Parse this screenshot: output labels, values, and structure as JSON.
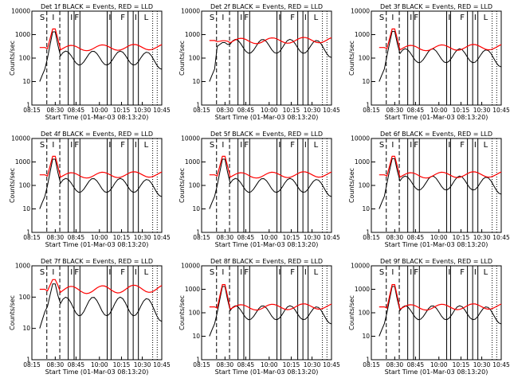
{
  "figure": {
    "xlabel": "Start Time (01-Mar-03 08:13:20)",
    "ylabel": "Counts/sec",
    "x_tick_labels": [
      "08:15",
      "08:30",
      "08:45",
      "10:00",
      "10:15",
      "10:30",
      "10:45"
    ],
    "y_tick_labels": [
      "1",
      "10",
      "100",
      "1000",
      "10000"
    ],
    "interval_labels": [
      "S",
      "I",
      "I",
      "F",
      "I",
      "F",
      "I",
      "L"
    ],
    "colors": {
      "events": "#000000",
      "lld": "#ff0000"
    }
  },
  "chart_data": [
    {
      "type": "line",
      "title": "Det 1f BLACK = Events, RED = LLD",
      "xlabel": "Start Time (01-Mar-03 08:13:20)",
      "ylabel": "Counts/sec",
      "ylim": [
        1,
        10000
      ],
      "log_y": true,
      "series": [
        {
          "name": "Events",
          "color": "#000000"
        },
        {
          "name": "LLD",
          "color": "#ff0000"
        }
      ]
    },
    {
      "type": "line",
      "title": "Det 2f BLACK = Events, RED = LLD",
      "xlabel": "Start Time (01-Mar-03 08:13:20)",
      "ylabel": "Counts/sec",
      "ylim": [
        1,
        10000
      ],
      "log_y": true,
      "series": [
        {
          "name": "Events",
          "color": "#000000"
        },
        {
          "name": "LLD",
          "color": "#ff0000"
        }
      ]
    },
    {
      "type": "line",
      "title": "Det 3f BLACK = Events, RED = LLD",
      "xlabel": "Start Time (01-Mar-03 08:13:20)",
      "ylabel": "Counts/sec",
      "ylim": [
        1,
        10000
      ],
      "log_y": true,
      "series": [
        {
          "name": "Events",
          "color": "#000000"
        },
        {
          "name": "LLD",
          "color": "#ff0000"
        }
      ]
    },
    {
      "type": "line",
      "title": "Det 4f BLACK = Events, RED = LLD",
      "xlabel": "Start Time (01-Mar-03 08:13:20)",
      "ylabel": "Counts/sec",
      "ylim": [
        1,
        10000
      ],
      "log_y": true,
      "series": [
        {
          "name": "Events",
          "color": "#000000"
        },
        {
          "name": "LLD",
          "color": "#ff0000"
        }
      ]
    },
    {
      "type": "line",
      "title": "Det 5f BLACK = Events, RED = LLD",
      "xlabel": "Start Time (01-Mar-03 08:13:20)",
      "ylabel": "Counts/sec",
      "ylim": [
        1,
        10000
      ],
      "log_y": true,
      "series": [
        {
          "name": "Events",
          "color": "#000000"
        },
        {
          "name": "LLD",
          "color": "#ff0000"
        }
      ]
    },
    {
      "type": "line",
      "title": "Det 6f BLACK = Events, RED = LLD",
      "xlabel": "Start Time (01-Mar-03 08:13:20)",
      "ylabel": "Counts/sec",
      "ylim": [
        1,
        10000
      ],
      "log_y": true,
      "series": [
        {
          "name": "Events",
          "color": "#000000"
        },
        {
          "name": "LLD",
          "color": "#ff0000"
        }
      ]
    },
    {
      "type": "line",
      "title": "Det 7f BLACK = Events, RED = LLD",
      "xlabel": "Start Time (01-Mar-03 08:13:20)",
      "ylabel": "Counts/sec",
      "ylim": [
        1,
        1000
      ],
      "log_y": true,
      "series": [
        {
          "name": "Events",
          "color": "#000000"
        },
        {
          "name": "LLD",
          "color": "#ff0000"
        }
      ]
    },
    {
      "type": "line",
      "title": "Det 8f BLACK = Events, RED = LLD",
      "xlabel": "Start Time (01-Mar-03 08:13:20)",
      "ylabel": "Counts/sec",
      "ylim": [
        1,
        10000
      ],
      "log_y": true,
      "series": [
        {
          "name": "Events",
          "color": "#000000"
        },
        {
          "name": "LLD",
          "color": "#ff0000"
        }
      ]
    },
    {
      "type": "line",
      "title": "Det 9f BLACK = Events, RED = LLD",
      "xlabel": "Start Time (01-Mar-03 08:13:20)",
      "ylabel": "Counts/sec",
      "ylim": [
        1,
        10000
      ],
      "log_y": true,
      "series": [
        {
          "name": "Events",
          "color": "#000000"
        },
        {
          "name": "LLD",
          "color": "#ff0000"
        }
      ]
    }
  ]
}
